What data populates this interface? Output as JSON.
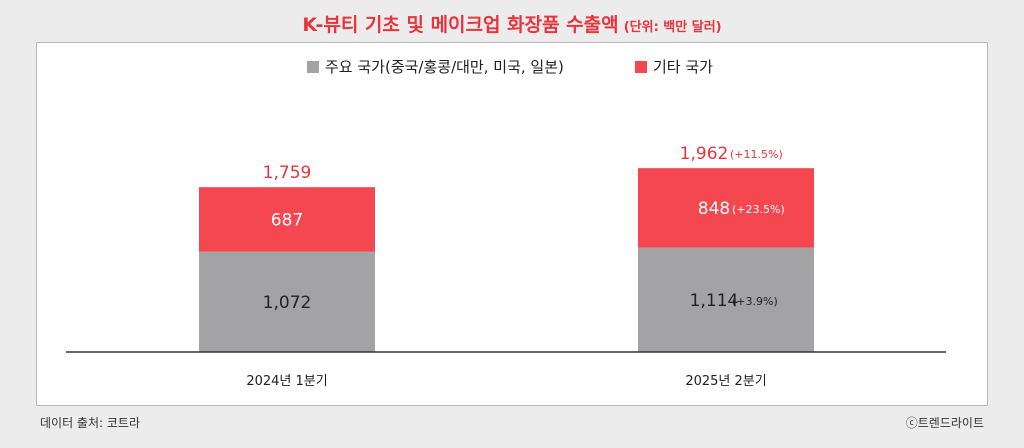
{
  "header": {
    "title": "K-뷰티 기초 및 메이크업 화장품 수출액",
    "unit": "(단위: 백만 달러)"
  },
  "chart_data": {
    "type": "bar",
    "stacked": true,
    "categories": [
      "2024년 1분기",
      "2025년 2분기"
    ],
    "series": [
      {
        "name": "주요 국가(중국/홍콩/대만, 미국, 일본)",
        "values": [
          1072,
          1114
        ],
        "labels": [
          "1,072",
          "1,114"
        ],
        "change": [
          "",
          "(+3.9%)"
        ],
        "color": "#a3a3a5"
      },
      {
        "name": "기타 국가",
        "values": [
          687,
          848
        ],
        "labels": [
          "687",
          "848"
        ],
        "change": [
          "",
          "(+23.5%)"
        ],
        "color": "#f5474f"
      }
    ],
    "totals": {
      "values": [
        1759,
        1962
      ],
      "labels": [
        "1,759",
        "1,962"
      ],
      "change": [
        "",
        "(+11.5%)"
      ]
    },
    "ylim": [
      0,
      2000
    ],
    "legend": "top-center",
    "grid": false
  },
  "footer": {
    "source": "데이터 출처: 코트라",
    "credit": "ⓒ트렌드라이트"
  },
  "colors": {
    "accent": "#e8343c",
    "total_label": "#e8343c"
  }
}
